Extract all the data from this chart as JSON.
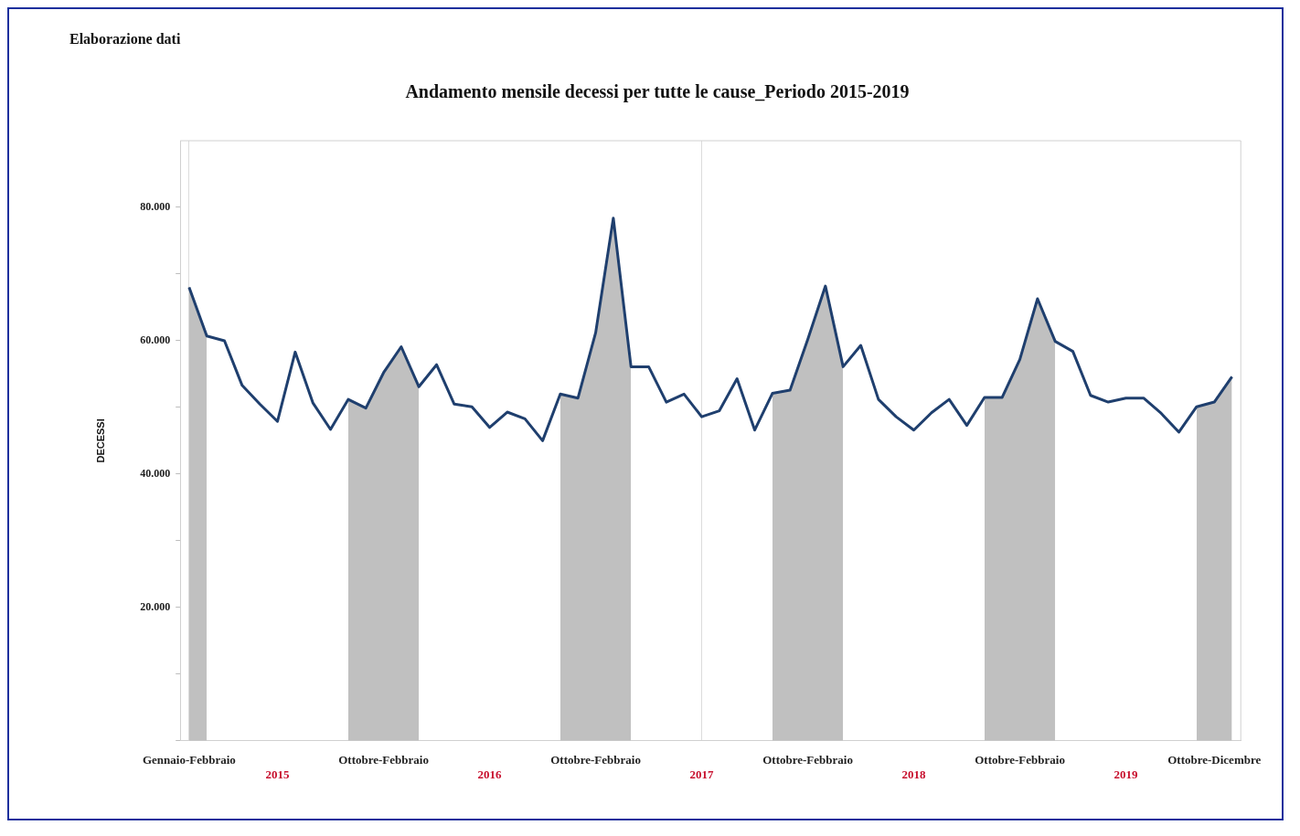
{
  "chart_data": {
    "type": "line",
    "title": "Andamento mensile decessi per tutte le cause_Periodo 2015-2019",
    "ylabel": "DECESSI",
    "annotations": [
      "Elaborazione dati"
    ],
    "categories": [
      "Gennaio-Febbraio",
      null,
      null,
      null,
      null,
      "2015",
      null,
      null,
      null,
      null,
      null,
      "Ottobre-Febbraio",
      null,
      null,
      null,
      null,
      null,
      "2016",
      null,
      null,
      null,
      null,
      null,
      "Ottobre-Febbraio",
      null,
      null,
      null,
      null,
      null,
      "2017",
      null,
      null,
      null,
      null,
      null,
      "Ottobre-Febbraio",
      null,
      null,
      null,
      null,
      null,
      "2018",
      null,
      null,
      null,
      null,
      null,
      "Ottobre-Febbraio",
      null,
      null,
      null,
      null,
      null,
      "2019",
      null,
      null,
      null,
      null,
      "Ottobre-Dicembre",
      null
    ],
    "series": [
      {
        "type": "area",
        "color": "#c0c0c0",
        "values": [
          68000,
          60700,
          null,
          null,
          null,
          null,
          null,
          null,
          null,
          51200,
          49900,
          55200,
          59100,
          53100,
          null,
          null,
          null,
          null,
          null,
          null,
          null,
          52000,
          51400,
          61200,
          78400,
          56100,
          null,
          null,
          null,
          null,
          null,
          null,
          null,
          52100,
          52600,
          60200,
          68200,
          56100,
          null,
          null,
          null,
          null,
          null,
          null,
          null,
          51500,
          51500,
          57200,
          66300,
          59900,
          null,
          null,
          null,
          null,
          null,
          null,
          null,
          50100,
          50800,
          54600
        ]
      },
      {
        "color": "#1f3f6e",
        "values": [
          68000,
          60700,
          60000,
          53300,
          50500,
          47900,
          58300,
          50700,
          46700,
          51200,
          49900,
          55200,
          59100,
          53100,
          56400,
          50500,
          50100,
          47000,
          49300,
          48300,
          45000,
          52000,
          51400,
          61200,
          78400,
          56100,
          56100,
          50800,
          52000,
          48600,
          49500,
          54300,
          46600,
          52100,
          52600,
          60200,
          68200,
          56100,
          59300,
          51200,
          48600,
          46600,
          49200,
          51200,
          47300,
          51500,
          51500,
          57200,
          66300,
          59900,
          58400,
          51800,
          50800,
          51400,
          51400,
          49100,
          46300,
          50100,
          50800,
          54600
        ]
      }
    ],
    "ylim": [
      0,
      90000
    ],
    "yticks": [
      {
        "value": 0,
        "label": null
      },
      {
        "value": 10000,
        "label": null
      },
      {
        "value": 20000,
        "label": "20.000"
      },
      {
        "value": 30000,
        "label": null
      },
      {
        "value": 40000,
        "label": "40.000"
      },
      {
        "value": 50000,
        "label": null
      },
      {
        "value": 60000,
        "label": "60.000"
      },
      {
        "value": 70000,
        "label": null
      },
      {
        "value": 80000,
        "label": "80.000"
      }
    ],
    "grid": "x",
    "legend": false,
    "marker": "none",
    "line_style": "solid"
  }
}
